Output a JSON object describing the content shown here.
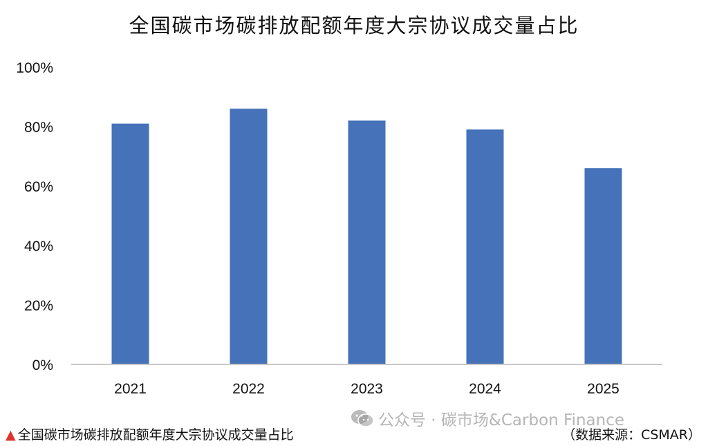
{
  "chart_data": {
    "type": "bar",
    "title": "全国碳市场碳排放配额年度大宗协议成交量占比",
    "categories": [
      "2021",
      "2022",
      "2023",
      "2024",
      "2025"
    ],
    "values": [
      81,
      86,
      82,
      79,
      66
    ],
    "yticks": [
      "0%",
      "20%",
      "40%",
      "60%",
      "80%",
      "100%"
    ],
    "ylim": [
      0,
      100
    ],
    "xlabel": "",
    "ylabel": "",
    "grid": false,
    "bar_color": "#4572b8"
  },
  "watermark": {
    "icon": "wechat-icon",
    "text": "公众号 · 碳市场&Carbon Finance"
  },
  "footer": {
    "caption_marker_color": "#e0332b",
    "caption": "全国碳市场碳排放配额年度大宗协议成交量占比",
    "source": "（数据来源：CSMAR）"
  }
}
